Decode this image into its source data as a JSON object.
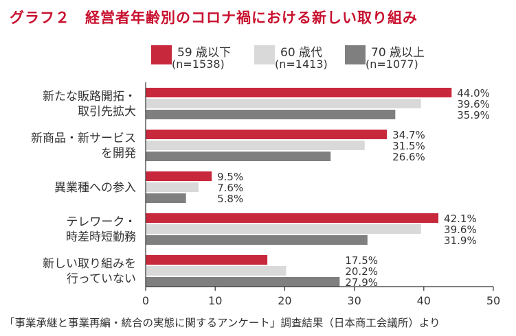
{
  "title": "グラフ２　経営者年齢別のコロナ禍における新しい取り組み",
  "source": "「事業承継と事業再編・統合の実態に関するアンケート」調査結果（日本商工会議所）より",
  "chart_data": {
    "type": "bar",
    "orientation": "horizontal",
    "categories": [
      [
        "新たな販路開拓・",
        "取引先拡大"
      ],
      [
        "新商品・新サービス",
        "を開発"
      ],
      [
        "異業種への参入"
      ],
      [
        "テレワーク・",
        "時差時短勤務"
      ],
      [
        "新しい取り組みを",
        "行っていない"
      ]
    ],
    "series": [
      {
        "name": "59 歳以下",
        "n": "(n=1538)",
        "color": "#c8283c",
        "values": [
          44.0,
          34.7,
          9.5,
          42.1,
          17.5
        ],
        "labels": [
          "44.0%",
          "34.7%",
          "9.5%",
          "42.1%",
          "17.5%"
        ]
      },
      {
        "name": "60 歳代",
        "n": "(n=1413)",
        "color": "#d9d9d9",
        "values": [
          39.6,
          31.5,
          7.6,
          39.6,
          20.2
        ],
        "labels": [
          "39.6%",
          "31.5%",
          "7.6%",
          "39.6%",
          "20.2%"
        ]
      },
      {
        "name": "70 歳以上",
        "n": "(n=1077)",
        "color": "#7f7f7f",
        "values": [
          35.9,
          26.6,
          5.8,
          31.9,
          27.9
        ],
        "labels": [
          "35.9%",
          "26.6%",
          "5.8%",
          "31.9%",
          "27.9%"
        ]
      }
    ],
    "xlim": [
      0,
      50
    ],
    "xticks": [
      "0",
      "10",
      "20",
      "30",
      "40",
      "50"
    ],
    "grid": false,
    "legend": "top"
  }
}
